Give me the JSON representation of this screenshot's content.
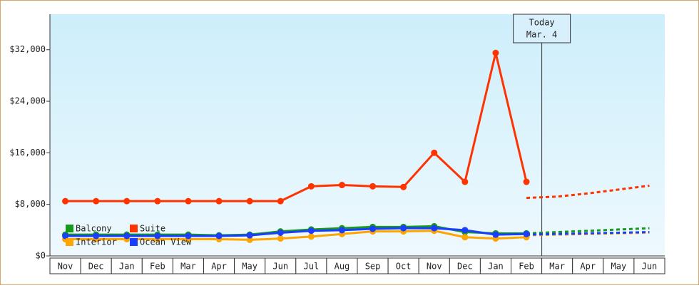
{
  "chart_data": {
    "type": "line",
    "categories": [
      "Nov",
      "Dec",
      "Jan",
      "Feb",
      "Mar",
      "Apr",
      "May",
      "Jun",
      "Jul",
      "Aug",
      "Sep",
      "Oct",
      "Nov",
      "Dec",
      "Jan",
      "Feb",
      "Mar",
      "Apr",
      "May",
      "Jun"
    ],
    "series": [
      {
        "name": "Balcony",
        "color": "#17991b",
        "values": [
          3300,
          3300,
          3300,
          3300,
          3300,
          3200,
          3300,
          3800,
          4100,
          4300,
          4500,
          4500,
          4600,
          3700,
          3500,
          3500,
          null,
          null,
          null,
          null
        ],
        "forecast": [
          null,
          null,
          null,
          null,
          null,
          null,
          null,
          null,
          null,
          null,
          null,
          null,
          null,
          null,
          null,
          3500,
          3700,
          3900,
          4100,
          4300
        ]
      },
      {
        "name": "Suite",
        "color": "#ff3300",
        "values": [
          8500,
          8500,
          8500,
          8500,
          8500,
          8500,
          8500,
          8500,
          10800,
          11000,
          10800,
          10700,
          16000,
          11500,
          31500,
          11500,
          null,
          null,
          null,
          null
        ],
        "forecast": [
          null,
          null,
          null,
          null,
          null,
          null,
          null,
          null,
          null,
          null,
          null,
          null,
          null,
          null,
          null,
          9000,
          9200,
          9700,
          10300,
          10900
        ]
      },
      {
        "name": "Interior",
        "color": "#ffa500",
        "values": [
          2600,
          2600,
          2600,
          2600,
          2600,
          2600,
          2500,
          2700,
          3000,
          3400,
          3800,
          3800,
          3900,
          2900,
          2700,
          2900,
          null,
          null,
          null,
          null
        ],
        "forecast": [
          null,
          null,
          null,
          null,
          null,
          null,
          null,
          null,
          null,
          null,
          null,
          null,
          null,
          null,
          null,
          3200,
          3300,
          3400,
          3500,
          3600
        ]
      },
      {
        "name": "Ocean View",
        "color": "#1a3dff",
        "values": [
          3100,
          3100,
          3100,
          3100,
          3100,
          3100,
          3200,
          3600,
          3900,
          4000,
          4200,
          4300,
          4300,
          4000,
          3300,
          3400,
          null,
          null,
          null,
          null
        ],
        "forecast": [
          null,
          null,
          null,
          null,
          null,
          null,
          null,
          null,
          null,
          null,
          null,
          null,
          null,
          null,
          null,
          3300,
          3400,
          3500,
          3600,
          3700
        ]
      }
    ],
    "ylim": [
      0,
      37500
    ],
    "yticks": [
      {
        "value": 0,
        "label": "$0"
      },
      {
        "value": 8000,
        "label": "$8,000"
      },
      {
        "value": 16000,
        "label": "$16,000"
      },
      {
        "value": 24000,
        "label": "$24,000"
      },
      {
        "value": 32000,
        "label": "$32,000"
      }
    ],
    "annotations": [
      "Today",
      "Mar. 4"
    ]
  }
}
